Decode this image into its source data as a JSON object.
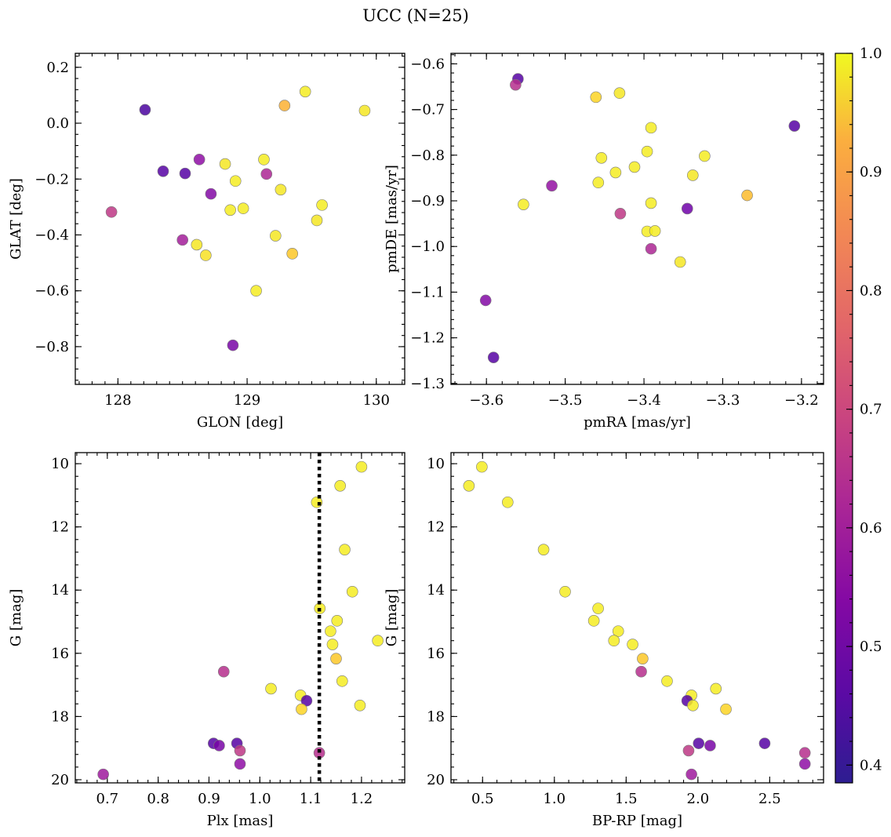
{
  "title": "UCC (N=25)",
  "colorbar": {
    "vmin": 0.385,
    "vmax": 1.0,
    "ticks": [
      0.4,
      0.5,
      0.6,
      0.7,
      0.8,
      0.9,
      1.0
    ],
    "tick_labels": [
      "0.4",
      "0.5",
      "0.6",
      "0.7",
      "0.8",
      "0.9",
      "1.0"
    ],
    "colormap": "plasma"
  },
  "chart_data": [
    {
      "type": "scatter",
      "xlabel": "GLON [deg]",
      "ylabel": "GLAT [deg]",
      "xlim": [
        127.67,
        130.22
      ],
      "ylim": [
        -0.935,
        0.25
      ],
      "x_ticks": [
        128,
        129,
        130
      ],
      "x_tick_labels": [
        "128",
        "129",
        "130"
      ],
      "y_ticks": [
        0.2,
        0.0,
        -0.2,
        -0.4,
        -0.6,
        -0.8
      ],
      "y_tick_labels": [
        "0.2",
        "0.0",
        "−0.2",
        "−0.4",
        "−0.6",
        "−0.8"
      ],
      "points": [
        {
          "x": 128.21,
          "y": 0.048,
          "c": 0.4
        },
        {
          "x": 128.35,
          "y": -0.172,
          "c": 0.42
        },
        {
          "x": 128.52,
          "y": -0.18,
          "c": 0.42
        },
        {
          "x": 128.63,
          "y": -0.13,
          "c": 0.52
        },
        {
          "x": 128.72,
          "y": -0.253,
          "c": 0.5
        },
        {
          "x": 128.89,
          "y": -0.795,
          "c": 0.48
        },
        {
          "x": 127.95,
          "y": -0.318,
          "c": 0.62
        },
        {
          "x": 128.5,
          "y": -0.418,
          "c": 0.56
        },
        {
          "x": 129.15,
          "y": -0.182,
          "c": 0.58
        },
        {
          "x": 128.61,
          "y": -0.435,
          "c": 0.97
        },
        {
          "x": 128.68,
          "y": -0.473,
          "c": 0.96
        },
        {
          "x": 128.83,
          "y": -0.146,
          "c": 0.97
        },
        {
          "x": 128.91,
          "y": -0.207,
          "c": 0.98
        },
        {
          "x": 128.87,
          "y": -0.311,
          "c": 0.98
        },
        {
          "x": 128.97,
          "y": -0.305,
          "c": 0.98
        },
        {
          "x": 129.07,
          "y": -0.6,
          "c": 0.98
        },
        {
          "x": 129.13,
          "y": -0.13,
          "c": 0.98
        },
        {
          "x": 129.22,
          "y": -0.403,
          "c": 0.97
        },
        {
          "x": 129.26,
          "y": -0.238,
          "c": 0.97
        },
        {
          "x": 129.35,
          "y": -0.467,
          "c": 0.92
        },
        {
          "x": 129.29,
          "y": 0.063,
          "c": 0.88
        },
        {
          "x": 129.45,
          "y": 0.113,
          "c": 0.98
        },
        {
          "x": 129.54,
          "y": -0.348,
          "c": 0.97
        },
        {
          "x": 129.58,
          "y": -0.293,
          "c": 0.98
        },
        {
          "x": 129.91,
          "y": 0.045,
          "c": 0.97
        }
      ]
    },
    {
      "type": "scatter",
      "xlabel": "pmRA [mas/yr]",
      "ylabel": "pmDE [mas/yr]",
      "xlim": [
        -3.645,
        -3.172
      ],
      "ylim": [
        -1.302,
        -0.577
      ],
      "x_ticks": [
        -3.6,
        -3.5,
        -3.4,
        -3.3,
        -3.2
      ],
      "x_tick_labels": [
        "−3.6",
        "−3.5",
        "−3.4",
        "−3.3",
        "−3.2"
      ],
      "y_ticks": [
        -0.6,
        -0.7,
        -0.8,
        -0.9,
        -1.0,
        -1.1,
        -1.2,
        -1.3
      ],
      "y_tick_labels": [
        "−0.6",
        "−0.7",
        "−0.8",
        "−0.9",
        "−1.0",
        "−1.1",
        "−1.2",
        "−1.3"
      ],
      "points": [
        {
          "x": -3.56,
          "y": -0.633,
          "c": 0.42
        },
        {
          "x": -3.563,
          "y": -0.646,
          "c": 0.6
        },
        {
          "x": -3.209,
          "y": -0.736,
          "c": 0.42
        },
        {
          "x": -3.601,
          "y": -1.118,
          "c": 0.5
        },
        {
          "x": -3.591,
          "y": -1.243,
          "c": 0.42
        },
        {
          "x": -3.517,
          "y": -0.867,
          "c": 0.53
        },
        {
          "x": -3.345,
          "y": -0.917,
          "c": 0.46
        },
        {
          "x": -3.43,
          "y": -0.928,
          "c": 0.62
        },
        {
          "x": -3.391,
          "y": -1.005,
          "c": 0.58
        },
        {
          "x": -3.461,
          "y": -0.673,
          "c": 0.94
        },
        {
          "x": -3.431,
          "y": -0.664,
          "c": 0.97
        },
        {
          "x": -3.391,
          "y": -0.74,
          "c": 0.98
        },
        {
          "x": -3.454,
          "y": -0.806,
          "c": 0.98
        },
        {
          "x": -3.396,
          "y": -0.792,
          "c": 0.98
        },
        {
          "x": -3.323,
          "y": -0.802,
          "c": 0.98
        },
        {
          "x": -3.436,
          "y": -0.838,
          "c": 0.98
        },
        {
          "x": -3.412,
          "y": -0.826,
          "c": 0.98
        },
        {
          "x": -3.458,
          "y": -0.86,
          "c": 0.98
        },
        {
          "x": -3.338,
          "y": -0.844,
          "c": 0.97
        },
        {
          "x": -3.553,
          "y": -0.908,
          "c": 0.98
        },
        {
          "x": -3.391,
          "y": -0.905,
          "c": 0.98
        },
        {
          "x": -3.396,
          "y": -0.967,
          "c": 0.98
        },
        {
          "x": -3.386,
          "y": -0.966,
          "c": 0.98
        },
        {
          "x": -3.354,
          "y": -1.034,
          "c": 0.97
        },
        {
          "x": -3.269,
          "y": -0.888,
          "c": 0.9
        }
      ]
    },
    {
      "type": "scatter",
      "xlabel": "Plx [mas]",
      "ylabel": "G [mag]",
      "xlim": [
        0.637,
        1.285
      ],
      "ylim": [
        20.1,
        9.65
      ],
      "invert_y": true,
      "vline": {
        "x": 1.117,
        "style": "dotted"
      },
      "x_ticks": [
        0.7,
        0.8,
        0.9,
        1.0,
        1.1,
        1.2
      ],
      "x_tick_labels": [
        "0.7",
        "0.8",
        "0.9",
        "1.0",
        "1.1",
        "1.2"
      ],
      "y_ticks": [
        10,
        12,
        14,
        16,
        18,
        20
      ],
      "y_tick_labels": [
        "10",
        "12",
        "14",
        "16",
        "18",
        "20"
      ],
      "points": [
        {
          "x": 1.2,
          "y": 10.1,
          "c": 0.98
        },
        {
          "x": 1.158,
          "y": 10.7,
          "c": 0.98
        },
        {
          "x": 1.112,
          "y": 11.22,
          "c": 0.98
        },
        {
          "x": 1.167,
          "y": 12.72,
          "c": 0.98
        },
        {
          "x": 1.182,
          "y": 14.05,
          "c": 0.98
        },
        {
          "x": 1.118,
          "y": 14.58,
          "c": 0.98
        },
        {
          "x": 1.152,
          "y": 14.97,
          "c": 0.98
        },
        {
          "x": 1.139,
          "y": 15.3,
          "c": 0.98
        },
        {
          "x": 1.232,
          "y": 15.6,
          "c": 0.98
        },
        {
          "x": 1.143,
          "y": 15.72,
          "c": 0.98
        },
        {
          "x": 1.15,
          "y": 16.17,
          "c": 0.92
        },
        {
          "x": 0.929,
          "y": 16.58,
          "c": 0.6
        },
        {
          "x": 1.162,
          "y": 16.88,
          "c": 0.98
        },
        {
          "x": 1.022,
          "y": 17.12,
          "c": 0.98
        },
        {
          "x": 1.08,
          "y": 17.33,
          "c": 0.98
        },
        {
          "x": 1.092,
          "y": 17.5,
          "c": 0.42
        },
        {
          "x": 1.197,
          "y": 17.65,
          "c": 0.98
        },
        {
          "x": 1.082,
          "y": 17.77,
          "c": 0.94
        },
        {
          "x": 0.909,
          "y": 18.85,
          "c": 0.42
        },
        {
          "x": 0.92,
          "y": 18.92,
          "c": 0.48
        },
        {
          "x": 0.955,
          "y": 18.85,
          "c": 0.42
        },
        {
          "x": 0.961,
          "y": 19.08,
          "c": 0.62
        },
        {
          "x": 1.117,
          "y": 19.15,
          "c": 0.6
        },
        {
          "x": 0.961,
          "y": 19.5,
          "c": 0.52
        },
        {
          "x": 0.692,
          "y": 19.83,
          "c": 0.55
        }
      ]
    },
    {
      "type": "scatter",
      "xlabel": "BP-RP [mag]",
      "ylabel": "G [mag]",
      "xlim": [
        0.28,
        2.875
      ],
      "ylim": [
        20.1,
        9.65
      ],
      "invert_y": true,
      "x_ticks": [
        0.5,
        1.0,
        1.5,
        2.0,
        2.5
      ],
      "x_tick_labels": [
        "0.5",
        "1.0",
        "1.5",
        "2.0",
        "2.5"
      ],
      "y_ticks": [
        10,
        12,
        14,
        16,
        18,
        20
      ],
      "y_tick_labels": [
        "10",
        "12",
        "14",
        "16",
        "18",
        "20"
      ],
      "points": [
        {
          "x": 0.495,
          "y": 10.1,
          "c": 0.98
        },
        {
          "x": 0.405,
          "y": 10.7,
          "c": 0.98
        },
        {
          "x": 0.675,
          "y": 11.22,
          "c": 0.98
        },
        {
          "x": 0.925,
          "y": 12.72,
          "c": 0.98
        },
        {
          "x": 1.075,
          "y": 14.05,
          "c": 0.98
        },
        {
          "x": 1.305,
          "y": 14.58,
          "c": 0.98
        },
        {
          "x": 1.275,
          "y": 14.97,
          "c": 0.98
        },
        {
          "x": 1.445,
          "y": 15.3,
          "c": 0.98
        },
        {
          "x": 1.415,
          "y": 15.6,
          "c": 0.98
        },
        {
          "x": 1.545,
          "y": 15.72,
          "c": 0.98
        },
        {
          "x": 1.615,
          "y": 16.17,
          "c": 0.92
        },
        {
          "x": 1.605,
          "y": 16.58,
          "c": 0.6
        },
        {
          "x": 1.785,
          "y": 16.88,
          "c": 0.98
        },
        {
          "x": 2.125,
          "y": 17.12,
          "c": 0.98
        },
        {
          "x": 1.955,
          "y": 17.33,
          "c": 0.98
        },
        {
          "x": 1.925,
          "y": 17.5,
          "c": 0.42
        },
        {
          "x": 1.965,
          "y": 17.65,
          "c": 0.98
        },
        {
          "x": 2.195,
          "y": 17.77,
          "c": 0.94
        },
        {
          "x": 2.005,
          "y": 18.85,
          "c": 0.42
        },
        {
          "x": 2.085,
          "y": 18.92,
          "c": 0.48
        },
        {
          "x": 2.465,
          "y": 18.85,
          "c": 0.42
        },
        {
          "x": 1.935,
          "y": 19.08,
          "c": 0.62
        },
        {
          "x": 2.745,
          "y": 19.15,
          "c": 0.6
        },
        {
          "x": 2.745,
          "y": 19.5,
          "c": 0.52
        },
        {
          "x": 1.955,
          "y": 19.83,
          "c": 0.55
        }
      ]
    }
  ]
}
